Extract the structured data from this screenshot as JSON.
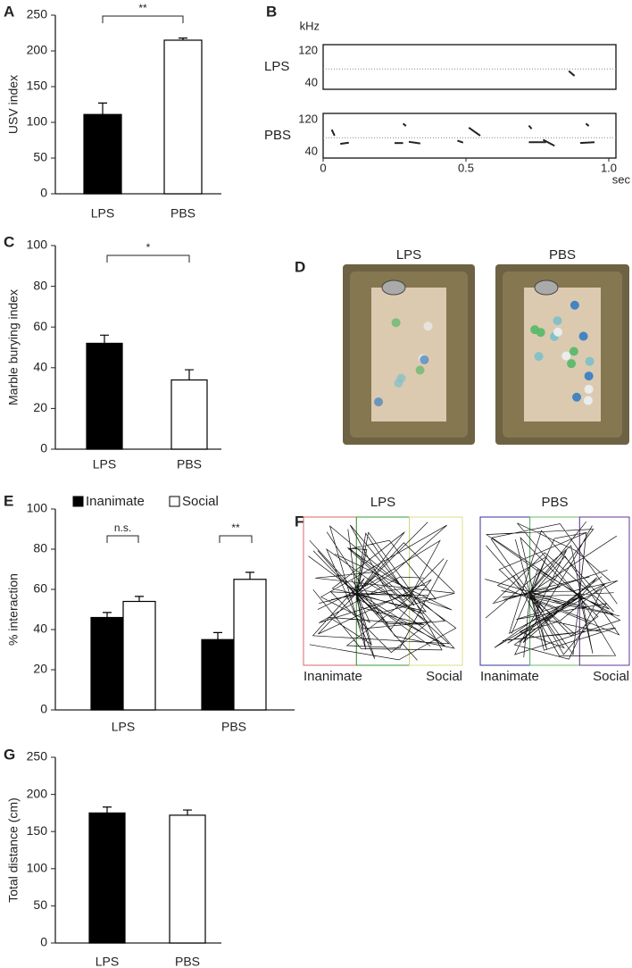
{
  "chart_data": [
    {
      "type": "bar",
      "panel": "A",
      "ylabel": "USV index",
      "categories": [
        "LPS",
        "PBS"
      ],
      "values": [
        111,
        215
      ],
      "errors": [
        16,
        3
      ],
      "colors": [
        "#000000",
        "#ffffff"
      ],
      "ylim": [
        0,
        250
      ],
      "yticks": [
        0,
        50,
        100,
        150,
        200,
        250
      ],
      "annotations": [
        "**"
      ]
    },
    {
      "type": "spectrogram",
      "panel": "B",
      "ylabel": "kHz",
      "xlabel": "sec",
      "rows": [
        "LPS",
        "PBS"
      ],
      "xlim": [
        0,
        1.0
      ],
      "xticks": [
        0,
        0.5,
        {
          "value": 1.0,
          "label": "1.0"
        }
      ],
      "ylim": [
        25,
        135
      ],
      "yticks": [
        40,
        120
      ]
    },
    {
      "type": "bar",
      "panel": "C",
      "ylabel": "Marble burying index",
      "categories": [
        "LPS",
        "PBS"
      ],
      "values": [
        52,
        34
      ],
      "errors": [
        4,
        5
      ],
      "colors": [
        "#000000",
        "#ffffff"
      ],
      "ylim": [
        0,
        100
      ],
      "yticks": [
        0,
        20,
        40,
        60,
        80,
        100
      ],
      "annotations": [
        "*"
      ]
    },
    {
      "type": "grouped-bar",
      "panel": "E",
      "ylabel": "% interaction",
      "categories": [
        "LPS",
        "PBS"
      ],
      "series": [
        {
          "name": "Inanimate",
          "color": "#000000",
          "values": [
            46,
            35
          ],
          "errors": [
            2.5,
            3.5
          ]
        },
        {
          "name": "Social",
          "color": "#ffffff",
          "values": [
            54,
            65
          ],
          "errors": [
            2.5,
            3.5
          ]
        }
      ],
      "ylim": [
        0,
        100
      ],
      "yticks": [
        0,
        20,
        40,
        60,
        80,
        100
      ],
      "annotations": [
        "n.s.",
        "**"
      ]
    },
    {
      "type": "bar",
      "panel": "G",
      "ylabel": "Total distance (cm)",
      "categories": [
        "LPS",
        "PBS"
      ],
      "values": [
        175,
        172
      ],
      "errors": [
        8,
        7
      ],
      "colors": [
        "#000000",
        "#ffffff"
      ],
      "ylim": [
        0,
        250
      ],
      "yticks": [
        0,
        50,
        100,
        150,
        200,
        250
      ]
    }
  ],
  "photos": {
    "D": {
      "panel": "D",
      "labels": [
        "LPS",
        "PBS"
      ]
    },
    "F": {
      "panel": "F",
      "arenas": [
        {
          "label": "LPS",
          "left": "Inanimate",
          "right": "Social"
        },
        {
          "label": "PBS",
          "left": "Inanimate",
          "right": "Social"
        }
      ]
    }
  }
}
